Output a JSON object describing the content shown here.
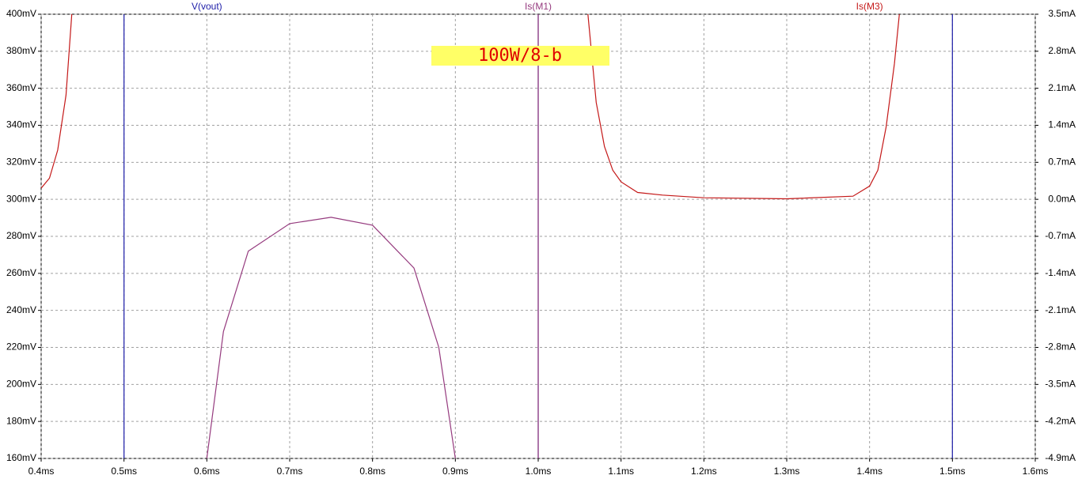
{
  "chart_data": {
    "type": "line",
    "annotation": "100W/8-b",
    "xlim": [
      0.4,
      1.6
    ],
    "xticks": [
      {
        "value": 0.4,
        "label": "0.4ms"
      },
      {
        "value": 0.5,
        "label": "0.5ms"
      },
      {
        "value": 0.6,
        "label": "0.6ms"
      },
      {
        "value": 0.7,
        "label": "0.7ms"
      },
      {
        "value": 0.8,
        "label": "0.8ms"
      },
      {
        "value": 0.9,
        "label": "0.9ms"
      },
      {
        "value": 1.0,
        "label": "1.0ms"
      },
      {
        "value": 1.1,
        "label": "1.1ms"
      },
      {
        "value": 1.2,
        "label": "1.2ms"
      },
      {
        "value": 1.3,
        "label": "1.3ms"
      },
      {
        "value": 1.4,
        "label": "1.4ms"
      },
      {
        "value": 1.5,
        "label": "1.5ms"
      },
      {
        "value": 1.6,
        "label": "1.6ms"
      }
    ],
    "ylim": [
      160,
      400
    ],
    "yticks": [
      {
        "value": 160,
        "label": "160mV"
      },
      {
        "value": 180,
        "label": "180mV"
      },
      {
        "value": 200,
        "label": "200mV"
      },
      {
        "value": 220,
        "label": "220mV"
      },
      {
        "value": 240,
        "label": "240mV"
      },
      {
        "value": 260,
        "label": "260mV"
      },
      {
        "value": 280,
        "label": "280mV"
      },
      {
        "value": 300,
        "label": "300mV"
      },
      {
        "value": 320,
        "label": "320mV"
      },
      {
        "value": 340,
        "label": "340mV"
      },
      {
        "value": 360,
        "label": "360mV"
      },
      {
        "value": 380,
        "label": "380mV"
      },
      {
        "value": 400,
        "label": "400mV"
      }
    ],
    "y2lim": [
      -4.9,
      3.5
    ],
    "y2ticks": [
      {
        "value": -4.9,
        "label": "-4.9mA"
      },
      {
        "value": -4.2,
        "label": "-4.2mA"
      },
      {
        "value": -3.5,
        "label": "-3.5mA"
      },
      {
        "value": -2.8,
        "label": "-2.8mA"
      },
      {
        "value": -2.1,
        "label": "-2.1mA"
      },
      {
        "value": -1.4,
        "label": "-1.4mA"
      },
      {
        "value": -0.7,
        "label": "-0.7mA"
      },
      {
        "value": 0,
        "label": "0.0mA"
      },
      {
        "value": 0.7,
        "label": "0.7mA"
      },
      {
        "value": 1.4,
        "label": "1.4mA"
      },
      {
        "value": 2.1,
        "label": "2.1mA"
      },
      {
        "value": 2.8,
        "label": "2.8mA"
      },
      {
        "value": 3.5,
        "label": "3.5mA"
      }
    ],
    "grid": true,
    "series": [
      {
        "name": "V(vout)",
        "color": "#1c1ca8",
        "x": [
          0.5,
          0.5,
          0.75,
          1.0,
          1.0,
          1.25,
          1.5,
          1.5
        ],
        "values": [
          400,
          160,
          null,
          160,
          400,
          null,
          400,
          160
        ]
      },
      {
        "name": "Is(M1)",
        "color": "#953a7e",
        "axis": "y2",
        "x": [
          0.6,
          0.62,
          0.65,
          0.7,
          0.75,
          0.8,
          0.85,
          0.88,
          0.9,
          0.95,
          1.0,
          1.0
        ],
        "values": [
          -4.9,
          -2.5,
          -0.98,
          -0.46,
          -0.34,
          -0.49,
          -1.3,
          -2.8,
          -4.9,
          null,
          -4.9,
          3.5
        ]
      },
      {
        "name": "Is(M3)",
        "color": "#c41818",
        "axis": "y2",
        "x": [
          0.4,
          0.41,
          0.42,
          0.43,
          0.437,
          0.75,
          1.06,
          1.07,
          1.08,
          1.09,
          1.1,
          1.12,
          1.15,
          1.2,
          1.3,
          1.38,
          1.4,
          1.41,
          1.42,
          1.43,
          1.436
        ],
        "values": [
          0.21,
          0.4,
          0.93,
          1.97,
          3.5,
          null,
          3.5,
          1.83,
          1.0,
          0.55,
          0.33,
          0.13,
          0.08,
          0.03,
          0.01,
          0.06,
          0.25,
          0.55,
          1.37,
          2.57,
          3.5
        ]
      }
    ]
  }
}
